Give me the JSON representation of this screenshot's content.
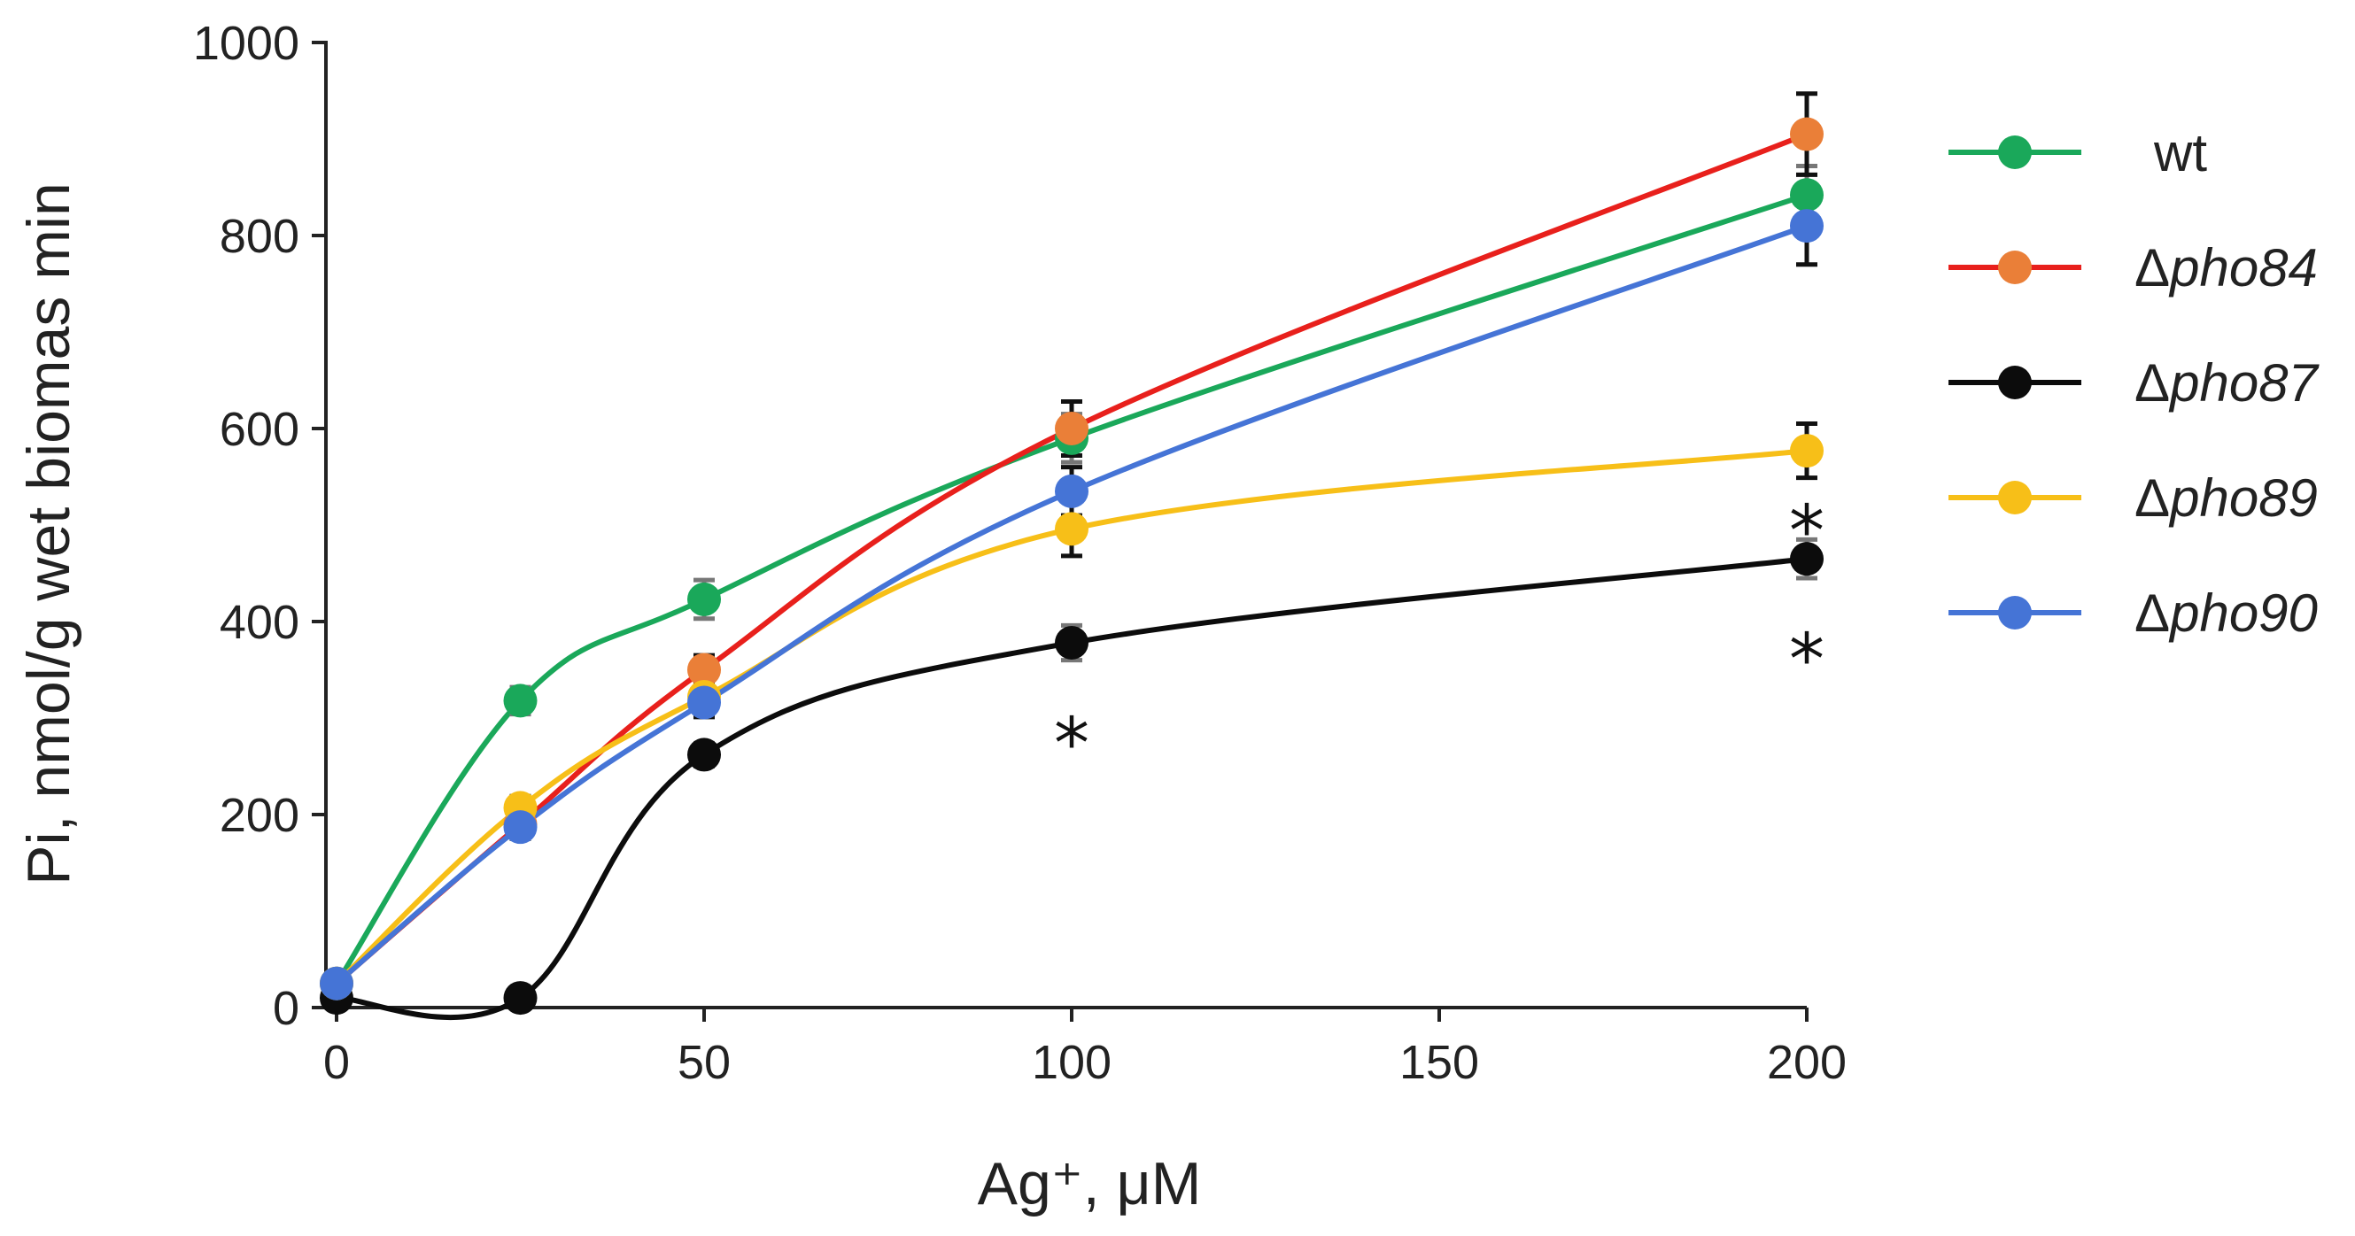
{
  "chart_data": {
    "type": "line",
    "title": "",
    "xlabel": "Ag⁺, μM",
    "ylabel": "Pi, nmol/g  wet biomas min",
    "xlim": [
      0,
      200
    ],
    "ylim": [
      0,
      1000
    ],
    "x_ticks": [
      0,
      50,
      100,
      150,
      200
    ],
    "y_ticks": [
      0,
      200,
      400,
      600,
      800,
      1000
    ],
    "x": [
      0,
      25,
      50,
      100,
      200
    ],
    "series": [
      {
        "name": "wt",
        "color": "#1aa85a",
        "values": [
          25,
          318,
          423,
          590,
          842
        ],
        "errors": [
          8,
          14,
          20,
          25,
          30
        ],
        "err_color": "#777777"
      },
      {
        "name": "Δpho84",
        "color": "#e8201c",
        "marker_color": "#ea7f38",
        "values": [
          25,
          190,
          350,
          600,
          905
        ],
        "errors": [
          8,
          12,
          15,
          28,
          42
        ],
        "err_color": "#111111"
      },
      {
        "name": "Δpho87",
        "color": "#0c0c0c",
        "values": [
          10,
          10,
          262,
          378,
          465
        ],
        "errors": [
          5,
          5,
          12,
          18,
          20
        ],
        "err_color": "#777777"
      },
      {
        "name": "Δpho89",
        "color": "#f7bf18",
        "values": [
          25,
          207,
          322,
          496,
          577
        ],
        "errors": [
          8,
          12,
          15,
          28,
          28
        ],
        "err_color": "#111111"
      },
      {
        "name": "Δpho90",
        "color": "#4574d6",
        "values": [
          25,
          187,
          316,
          535,
          810
        ],
        "errors": [
          8,
          12,
          15,
          25,
          40
        ],
        "err_color": "#111111"
      }
    ],
    "annotations": [
      {
        "text": "*",
        "x": 100,
        "y": 285
      },
      {
        "text": "*",
        "x": 200,
        "y": 505
      },
      {
        "text": "*",
        "x": 200,
        "y": 372
      }
    ],
    "legend": {
      "position": "right",
      "entries": [
        {
          "prefix": "",
          "label": "wt",
          "italic": false
        },
        {
          "prefix": "Δ",
          "label": "pho84",
          "italic": true
        },
        {
          "prefix": "Δ",
          "label": "pho87",
          "italic": true
        },
        {
          "prefix": "Δ",
          "label": "pho89",
          "italic": true
        },
        {
          "prefix": "Δ",
          "label": "pho90",
          "italic": true
        }
      ]
    }
  }
}
